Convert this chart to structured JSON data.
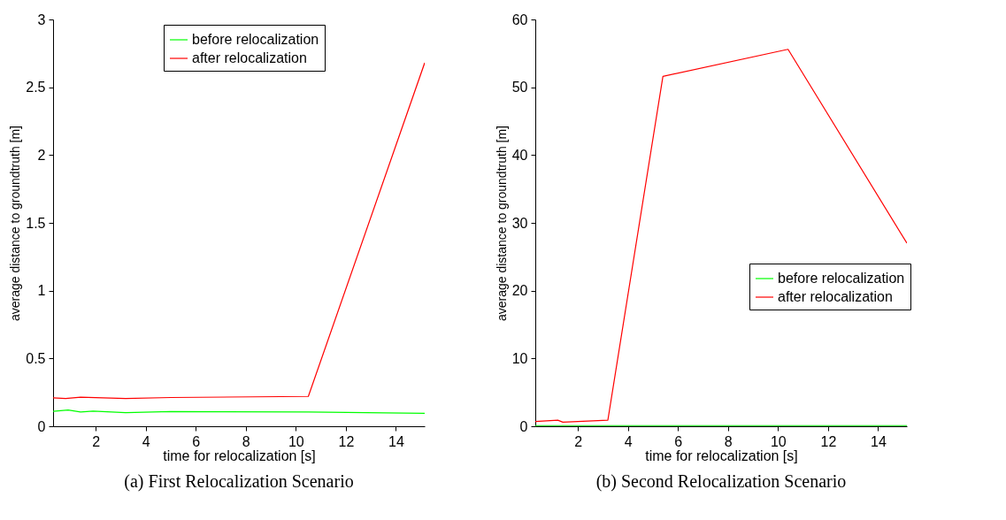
{
  "chart_data": [
    {
      "type": "line",
      "xlabel": "time for relocalization [s]",
      "ylabel": "average distance to groundtruth [m]",
      "annotations": [
        "(a) First Relocalization Scenario"
      ],
      "xlim": [
        0.3,
        15.15
      ],
      "xticks": [
        2,
        4,
        6,
        8,
        10,
        12,
        14
      ],
      "ylim": [
        0,
        3
      ],
      "yticks": [
        0,
        0.5,
        1,
        1.5,
        2,
        2.5,
        3
      ],
      "grid": false,
      "legend": "top",
      "line_style": "solid",
      "series": [
        {
          "name": "before relocalization",
          "color": "#00ff00",
          "x": [
            0.3,
            0.9,
            1.4,
            1.9,
            3.2,
            5,
            10.5,
            15.15
          ],
          "values": [
            0.11,
            0.12,
            0.105,
            0.112,
            0.1,
            0.108,
            0.105,
            0.095
          ]
        },
        {
          "name": "after relocalization",
          "color": "#ff0000",
          "x": [
            0.3,
            0.8,
            1.4,
            3.2,
            5,
            10.5,
            15.15
          ],
          "values": [
            0.21,
            0.205,
            0.215,
            0.205,
            0.212,
            0.22,
            2.68
          ]
        }
      ]
    },
    {
      "type": "line",
      "xlabel": "time for relocalization [s]",
      "ylabel": "average distance to groundtruth [m]",
      "annotations": [
        "(b) Second Relocalization Scenario"
      ],
      "xlim": [
        0.3,
        15.15
      ],
      "xticks": [
        2,
        4,
        6,
        8,
        10,
        12,
        14
      ],
      "ylim": [
        0,
        60
      ],
      "yticks": [
        0,
        10,
        20,
        30,
        40,
        50,
        60
      ],
      "grid": false,
      "legend": "right",
      "line_style": "solid",
      "series": [
        {
          "name": "before relocalization",
          "color": "#00ff00",
          "x": [
            0.3,
            5,
            10,
            15.15
          ],
          "values": [
            0.1,
            0.1,
            0.1,
            0.1
          ]
        },
        {
          "name": "after relocalization",
          "color": "#ff0000",
          "x": [
            0.3,
            1.2,
            1.4,
            2,
            3.2,
            5.4,
            10.4,
            15.15
          ],
          "values": [
            0.7,
            0.9,
            0.6,
            0.7,
            0.9,
            51.6,
            55.6,
            27
          ]
        }
      ]
    }
  ]
}
